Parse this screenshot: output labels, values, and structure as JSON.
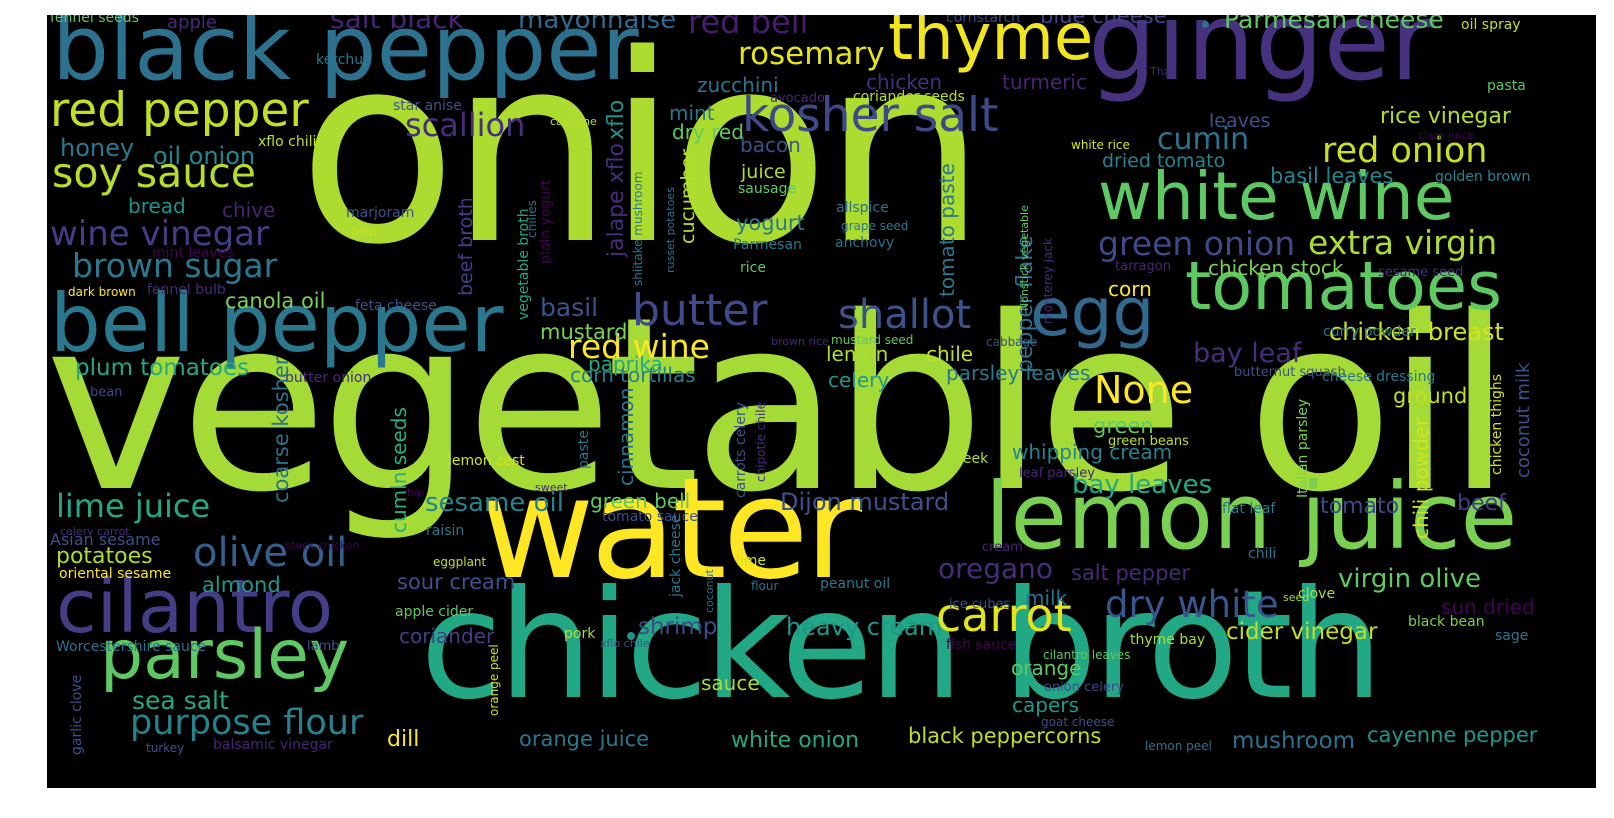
{
  "colors": {
    "background": "#000000",
    "palette": [
      "#440154",
      "#472d7b",
      "#3b528b",
      "#2c728e",
      "#21918c",
      "#28ae80",
      "#5ec962",
      "#addc30",
      "#fde725"
    ]
  },
  "words": [
    {
      "text": "onion",
      "color": "#addc30"
    },
    {
      "text": "vegetable oil",
      "color": "#a5db36"
    },
    {
      "text": "chicken broth",
      "color": "#22a884"
    },
    {
      "text": "water",
      "color": "#fde725"
    },
    {
      "text": "ginger",
      "color": "#46327e"
    },
    {
      "text": "black pepper",
      "color": "#2c728e"
    },
    {
      "text": "bell pepper",
      "color": "#2a788e"
    },
    {
      "text": "cilantro",
      "color": "#433e85"
    },
    {
      "text": "lemon juice",
      "color": "#7ad151"
    },
    {
      "text": "tomatoes",
      "color": "#5ec962"
    },
    {
      "text": "white wine",
      "color": "#5ec962"
    },
    {
      "text": "thyme",
      "color": "#f1e51d"
    },
    {
      "text": "parsley",
      "color": "#5ec962"
    },
    {
      "text": "egg",
      "color": "#31688e"
    },
    {
      "text": "red pepper",
      "color": "#c2df23"
    },
    {
      "text": "soy sauce",
      "color": "#b5de2b"
    },
    {
      "text": "kosher salt",
      "color": "#3e4989"
    },
    {
      "text": "carrot",
      "color": "#e5e419"
    },
    {
      "text": "butter",
      "color": "#3e4a89"
    },
    {
      "text": "olive oil",
      "color": "#355f8d"
    },
    {
      "text": "shallot",
      "color": "#3b528b"
    },
    {
      "text": "dry white",
      "color": "#39568c"
    },
    {
      "text": "purpose flour",
      "color": "#26828e"
    },
    {
      "text": "lime juice",
      "color": "#22a884"
    },
    {
      "text": "brown sugar",
      "color": "#2a788e"
    },
    {
      "text": "red onion",
      "color": "#c8e020"
    },
    {
      "text": "extra virgin",
      "color": "#addc30"
    },
    {
      "text": "wine vinegar",
      "color": "#433e85"
    },
    {
      "text": "green onion",
      "color": "#3e4989"
    },
    {
      "text": "None",
      "color": "#fde725"
    },
    {
      "text": "red wine",
      "color": "#fde725"
    },
    {
      "text": "red bell",
      "color": "#481c6e"
    },
    {
      "text": "rosemary",
      "color": "#e5e419"
    },
    {
      "text": "scallion",
      "color": "#472d7b"
    },
    {
      "text": "salt black",
      "color": "#482475"
    },
    {
      "text": "mayonnaise",
      "color": "#31688e"
    },
    {
      "text": "Parmesan cheese",
      "color": "#5ec962"
    },
    {
      "text": "blue cheese",
      "color": "#414487"
    },
    {
      "text": "cumin",
      "color": "#2c728e"
    },
    {
      "text": "rice vinegar",
      "color": "#b5de2b"
    },
    {
      "text": "chicken breast",
      "color": "#d2e21b"
    },
    {
      "text": "oregano",
      "color": "#472c7a"
    },
    {
      "text": "virgin olive",
      "color": "#5ec962"
    },
    {
      "text": "sesame oil",
      "color": "#26828e"
    },
    {
      "text": "Dijon mustard",
      "color": "#3b528b"
    },
    {
      "text": "sea salt",
      "color": "#22a884"
    },
    {
      "text": "heavy cream",
      "color": "#1f988b"
    },
    {
      "text": "shrimp",
      "color": "#3e4989"
    },
    {
      "text": "cider vinegar",
      "color": "#c2df23"
    },
    {
      "text": "black peppercorns",
      "color": "#bddf26"
    },
    {
      "text": "cayenne pepper",
      "color": "#1f988b"
    },
    {
      "text": "mushroom",
      "color": "#2c728e"
    },
    {
      "text": "orange juice",
      "color": "#2a788e"
    },
    {
      "text": "white onion",
      "color": "#22a884"
    },
    {
      "text": "dill",
      "color": "#fde725"
    },
    {
      "text": "bay leaf",
      "color": "#472d7b"
    },
    {
      "text": "bay leaves",
      "color": "#22a884"
    },
    {
      "text": "salt pepper",
      "color": "#482878"
    },
    {
      "text": "sour cream",
      "color": "#3b528b"
    },
    {
      "text": "potatoes",
      "color": "#addc30"
    },
    {
      "text": "almond",
      "color": "#1f988b"
    },
    {
      "text": "honey",
      "color": "#2a788e"
    },
    {
      "text": "oil onion",
      "color": "#24868e"
    },
    {
      "text": "plum tomatoes",
      "color": "#22a884"
    },
    {
      "text": "canola oil",
      "color": "#7ad151"
    },
    {
      "text": "basil",
      "color": "#3b528b"
    },
    {
      "text": "mustard",
      "color": "#7ad151"
    },
    {
      "text": "paprika",
      "color": "#22a884"
    },
    {
      "text": "corn tortillas",
      "color": "#287d8e"
    },
    {
      "text": "chicken stock",
      "color": "#7ad151"
    },
    {
      "text": "basil leaves",
      "color": "#25858e"
    },
    {
      "text": "whipping cream",
      "color": "#26828e"
    },
    {
      "text": "parsley leaves",
      "color": "#2a788e"
    },
    {
      "text": "celery",
      "color": "#1f988b"
    },
    {
      "text": "lemon",
      "color": "#addc30"
    },
    {
      "text": "chile",
      "color": "#c2df23"
    },
    {
      "text": "tomato",
      "color": "#3e4989"
    },
    {
      "text": "beef",
      "color": "#433e85"
    },
    {
      "text": "green bell",
      "color": "#5ec962"
    },
    {
      "text": "ground",
      "color": "#c2df23"
    },
    {
      "text": "green",
      "color": "#5ec962"
    },
    {
      "text": "corn",
      "color": "#fde725"
    },
    {
      "text": "yogurt",
      "color": "#2a788e"
    },
    {
      "text": "juice",
      "color": "#addc30"
    },
    {
      "text": "bacon",
      "color": "#3b528b"
    },
    {
      "text": "mint",
      "color": "#2a788e"
    },
    {
      "text": "dry red",
      "color": "#5ec962"
    },
    {
      "text": "zucchini",
      "color": "#2c728e"
    },
    {
      "text": "chicken",
      "color": "#472d7b"
    },
    {
      "text": "turmeric",
      "color": "#482475"
    },
    {
      "text": "sun dried",
      "color": "#440154"
    },
    {
      "text": "milk",
      "color": "#2c728e"
    },
    {
      "text": "capers",
      "color": "#1f988b"
    },
    {
      "text": "orange",
      "color": "#5ec962"
    },
    {
      "text": "sauce",
      "color": "#addc30"
    },
    {
      "text": "coriander",
      "color": "#433e85"
    },
    {
      "text": "bread",
      "color": "#21918c"
    },
    {
      "text": "chive",
      "color": "#482475"
    },
    {
      "text": "dried tomato",
      "color": "#25858e"
    },
    {
      "text": "leaves",
      "color": "#3b528b"
    },
    {
      "text": "Worcestershire sauce",
      "color": "#2c728e"
    },
    {
      "text": "Asian sesame",
      "color": "#3b528b"
    },
    {
      "text": "oriental sesame",
      "color": "#fde725"
    },
    {
      "text": "apple",
      "color": "#482878"
    },
    {
      "text": "fennel seeds",
      "color": "#5ec962"
    },
    {
      "text": "ketchup",
      "color": "#2a788e"
    },
    {
      "text": "star anise",
      "color": "#3b528b"
    },
    {
      "text": "cornstarch",
      "color": "#3e4989"
    },
    {
      "text": "oil spray",
      "color": "#c2df23"
    },
    {
      "text": "pasta",
      "color": "#5ec962"
    },
    {
      "text": "Thai",
      "color": "#482878"
    },
    {
      "text": "avocado",
      "color": "#482475"
    },
    {
      "text": "coriander seeds",
      "color": "#b5de2b"
    },
    {
      "text": "cayenne",
      "color": "#b5de2b"
    },
    {
      "text": "xflo chili",
      "color": "#c2df23"
    },
    {
      "text": "white rice",
      "color": "#d2e21b"
    },
    {
      "text": "clam juice",
      "color": "#440154"
    },
    {
      "text": "golden brown",
      "color": "#25858e"
    },
    {
      "text": "sausage",
      "color": "#5ec962"
    },
    {
      "text": "allspice",
      "color": "#2c728e"
    },
    {
      "text": "grape seed",
      "color": "#2a788e"
    },
    {
      "text": "marjoram",
      "color": "#3b528b"
    },
    {
      "text": "pea",
      "color": "#c2df23"
    },
    {
      "text": "anchovy",
      "color": "#2c728e"
    },
    {
      "text": "Parmesan",
      "color": "#2a788e"
    },
    {
      "text": "rice",
      "color": "#5ec962"
    },
    {
      "text": "mint leaves",
      "color": "#440154"
    },
    {
      "text": "dark brown",
      "color": "#fde725"
    },
    {
      "text": "fennel bulb",
      "color": "#482878"
    },
    {
      "text": "feta cheese",
      "color": "#3b528b"
    },
    {
      "text": "tarragon",
      "color": "#482475"
    },
    {
      "text": "sesame seed",
      "color": "#472d7b"
    },
    {
      "text": "curry powder",
      "color": "#2a788e"
    },
    {
      "text": "brown rice",
      "color": "#482475"
    },
    {
      "text": "mustard seed",
      "color": "#5ec962"
    },
    {
      "text": "cabbage",
      "color": "#3e4989"
    },
    {
      "text": "butternut squash",
      "color": "#3b528b"
    },
    {
      "text": "cheese dressing",
      "color": "#2a788e"
    },
    {
      "text": "butter onion",
      "color": "#482878"
    },
    {
      "text": "bean",
      "color": "#3e4989"
    },
    {
      "text": "lemon zest",
      "color": "#d2e21b"
    },
    {
      "text": "leek",
      "color": "#b5de2b"
    },
    {
      "text": "leaf parsley",
      "color": "#482475"
    },
    {
      "text": "green beans",
      "color": "#c2df23"
    },
    {
      "text": "flat leaf",
      "color": "#2a788e"
    },
    {
      "text": "sweet",
      "color": "#472d7b"
    },
    {
      "text": "tsp",
      "color": "#440154"
    },
    {
      "text": "raisin",
      "color": "#2a788e"
    },
    {
      "text": "tomato sauce",
      "color": "#3b528b"
    },
    {
      "text": "celery carrot",
      "color": "#472d7b"
    },
    {
      "text": "stock chicken",
      "color": "#440154"
    },
    {
      "text": "eggplant",
      "color": "#c2df23"
    },
    {
      "text": "lime",
      "color": "#d2e21b"
    },
    {
      "text": "flour",
      "color": "#2c728e"
    },
    {
      "text": "peanut oil",
      "color": "#2a788e"
    },
    {
      "text": "cream",
      "color": "#482475"
    },
    {
      "text": "chili",
      "color": "#2a788e"
    },
    {
      "text": "ice cubes",
      "color": "#3b528b"
    },
    {
      "text": "seed",
      "color": "#addc30"
    },
    {
      "text": "clove",
      "color": "#addc30"
    },
    {
      "text": "black bean",
      "color": "#7ad151"
    },
    {
      "text": "sage",
      "color": "#2a788e"
    },
    {
      "text": "apple cider",
      "color": "#5ec962"
    },
    {
      "text": "pork",
      "color": "#b5de2b"
    },
    {
      "text": "xflo chile",
      "color": "#3b528b"
    },
    {
      "text": "lamb",
      "color": "#3b528b"
    },
    {
      "text": "thyme bay",
      "color": "#addc30"
    },
    {
      "text": "fish sauce",
      "color": "#440154"
    },
    {
      "text": "cilantro leaves",
      "color": "#5ec962"
    },
    {
      "text": "onion celery",
      "color": "#3e4989"
    },
    {
      "text": "goat cheese",
      "color": "#3b528b"
    },
    {
      "text": "lemon peel",
      "color": "#2c728e"
    },
    {
      "text": "turkey",
      "color": "#3b528b"
    },
    {
      "text": "balsamic vinegar",
      "color": "#482475"
    },
    {
      "text": "xflo",
      "color": "#21918c"
    },
    {
      "text": "jalape xflo",
      "color": "#472d7b"
    },
    {
      "text": "cucumber",
      "color": "#b5de2b"
    },
    {
      "text": "beef broth",
      "color": "#433e85"
    },
    {
      "text": "tomato paste",
      "color": "#2a788e"
    },
    {
      "text": "pepper flake",
      "color": "#2c728e"
    },
    {
      "text": "Nonstick vegetable",
      "color": "#5ec962"
    },
    {
      "text": "monterey jack",
      "color": "#472d7b"
    },
    {
      "text": "vegetable broth",
      "color": "#22a884"
    },
    {
      "text": "chilies",
      "color": "#2c728e"
    },
    {
      "text": "plain yogurt",
      "color": "#440154"
    },
    {
      "text": "shiitake mushroom",
      "color": "#2a788e"
    },
    {
      "text": "russet potatoes",
      "color": "#2c728e"
    },
    {
      "text": "cinnamon",
      "color": "#2c728e"
    },
    {
      "text": "paste",
      "color": "#2a788e"
    },
    {
      "text": "carrots celery",
      "color": "#3b528b"
    },
    {
      "text": "chipotle chile",
      "color": "#472d7b"
    },
    {
      "text": "coarse kosher",
      "color": "#2c728e"
    },
    {
      "text": "cumin seeds",
      "color": "#28ae80"
    },
    {
      "text": "jack cheese",
      "color": "#2a788e"
    },
    {
      "text": "coconut",
      "color": "#2c728e"
    },
    {
      "text": "orange peel",
      "color": "#d2e21b"
    },
    {
      "text": "garlic clove",
      "color": "#3b528b"
    },
    {
      "text": "chili powder",
      "color": "#d2e21b"
    },
    {
      "text": "coconut milk",
      "color": "#3b528b"
    },
    {
      "text": "chicken thighs",
      "color": "#d2e21b"
    },
    {
      "text": "Italian parsley",
      "color": "#7ad151"
    }
  ]
}
